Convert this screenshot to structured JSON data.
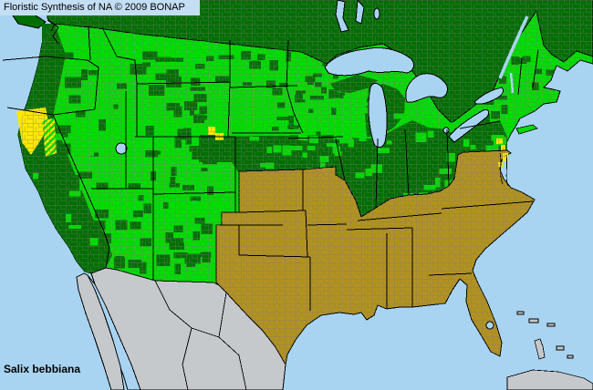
{
  "header": {
    "title": "Floristic Synthesis of NA © 2009 BONAP"
  },
  "species_label": "Salix bebbiana",
  "map": {
    "colors": {
      "water": "#A8D4F2",
      "box_bg": "#C4DEF4",
      "dark_green": "#006E00",
      "bright_green": "#00DC00",
      "yellow": "#FFE800",
      "gold": "#B3921E",
      "gray_land": "#C6C9CC",
      "county_line": "#7B7B7B",
      "state_line": "#000000",
      "text": "#000000"
    },
    "regions": {
      "green_mixed_counties": [
        "Washington",
        "Oregon",
        "Idaho",
        "Montana",
        "Wyoming",
        "Nevada",
        "Utah",
        "Colorado",
        "Arizona",
        "New Mexico",
        "North Dakota",
        "South Dakota",
        "Minnesota",
        "Wisconsin",
        "Michigan",
        "Illinois",
        "Indiana",
        "Ohio",
        "Pennsylvania",
        "New York",
        "New Jersey",
        "Connecticut",
        "Massachusetts",
        "Vermont",
        "New Hampshire",
        "Maine"
      ],
      "solid_dark_green": [
        "Canada",
        "California coast",
        "Nebraska",
        "Iowa"
      ],
      "gold_absent": [
        "Texas",
        "Oklahoma",
        "Kansas",
        "Missouri",
        "Arkansas",
        "Louisiana",
        "Mississippi",
        "Alabama",
        "Georgia",
        "Florida",
        "Tennessee",
        "Kentucky",
        "West Virginia",
        "Virginia",
        "North Carolina",
        "South Carolina",
        "Maryland",
        "Delaware"
      ],
      "yellow_rare_spots": [
        "northeastern California",
        "California/Nevada border (hatched county)",
        "western South Dakota/Nebraska line",
        "New Jersey",
        "Delaware",
        "eastern Maryland"
      ],
      "gray_outside": [
        "Mexico",
        "Baja California",
        "Bahamas",
        "Cuba"
      ]
    }
  }
}
